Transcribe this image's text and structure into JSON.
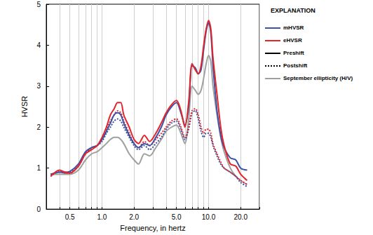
{
  "chart_data": {
    "type": "line",
    "x_label": "Frequency, in hertz",
    "y_label": "HVSR",
    "log": "x",
    "grid": true,
    "legend": "right",
    "legend_title": "EXPLANATION",
    "legend_entries": [
      {
        "name": "mHVSR",
        "color": "#3a53a4",
        "line_style": "solid"
      },
      {
        "name": "eHVSR",
        "color": "#e3242b",
        "line_style": "solid"
      },
      {
        "name": "Preshift",
        "color": "#000000",
        "line_style": "solid"
      },
      {
        "name": "Postshift",
        "color": "#000000",
        "line_style": "dotted"
      },
      {
        "name": "September ellipticity (H/V)",
        "color": "#a0a0a0",
        "line_style": "solid"
      }
    ],
    "xlim": [
      0.3,
      30
    ],
    "xticks": [
      0.5,
      {
        "value": 1,
        "label": "1.0"
      },
      {
        "value": 2,
        "label": "2.0"
      },
      {
        "value": 5,
        "label": "5.0"
      },
      {
        "value": 10,
        "label": "10.0"
      },
      {
        "value": 20,
        "label": "20.0"
      }
    ],
    "ylim": [
      0,
      5
    ],
    "yticks": [
      0,
      1,
      2,
      3,
      4,
      5
    ],
    "x": [
      0.33,
      0.4,
      0.45,
      0.5,
      0.6,
      0.7,
      0.8,
      0.9,
      1.0,
      1.1,
      1.2,
      1.3,
      1.4,
      1.5,
      1.6,
      1.8,
      2.0,
      2.2,
      2.5,
      2.8,
      3.2,
      3.6,
      4.0,
      4.5,
      5.0,
      5.5,
      6.0,
      6.5,
      7.0,
      7.5,
      8.0,
      8.5,
      9.0,
      9.5,
      10.0,
      10.5,
      11,
      12,
      13,
      14,
      16,
      18,
      20,
      23
    ],
    "series": [
      {
        "name": "September ellipticity (H/V)",
        "color": "#a0a0a0",
        "line_style": "solid",
        "values": [
          0.85,
          0.85,
          0.85,
          0.85,
          0.95,
          1.2,
          1.35,
          1.4,
          1.5,
          1.6,
          1.7,
          1.75,
          1.75,
          1.7,
          1.6,
          1.35,
          1.2,
          1.1,
          1.35,
          1.3,
          1.5,
          1.7,
          1.9,
          2.0,
          2.05,
          1.85,
          1.6,
          2.2,
          3.0,
          2.9,
          2.8,
          2.9,
          3.2,
          3.55,
          3.75,
          3.6,
          3.0,
          2.3,
          1.75,
          1.4,
          1.0,
          0.8,
          0.7,
          0.6
        ]
      },
      {
        "name": "mHVSR",
        "color": "#3a53a4",
        "line_style": "dotted",
        "values": [
          0.85,
          0.9,
          0.88,
          0.9,
          1.05,
          1.35,
          1.5,
          1.55,
          1.65,
          1.85,
          2.0,
          2.15,
          2.2,
          2.15,
          2.0,
          1.75,
          1.55,
          1.45,
          1.55,
          1.45,
          1.6,
          1.75,
          1.95,
          2.1,
          2.15,
          1.95,
          1.7,
          1.95,
          2.35,
          2.4,
          2.2,
          1.9,
          1.75,
          1.85,
          1.85,
          1.75,
          1.55,
          1.3,
          1.1,
          1.0,
          0.9,
          0.8,
          0.65,
          0.55
        ]
      },
      {
        "name": "eHVSR",
        "color": "#e3242b",
        "line_style": "dotted",
        "values": [
          0.8,
          0.92,
          0.88,
          0.88,
          1.05,
          1.35,
          1.5,
          1.55,
          1.7,
          1.95,
          2.15,
          2.3,
          2.4,
          2.35,
          2.15,
          1.85,
          1.6,
          1.5,
          1.65,
          1.55,
          1.7,
          1.85,
          2.0,
          2.15,
          2.2,
          2.0,
          1.75,
          2.0,
          2.4,
          2.45,
          2.3,
          2.0,
          1.85,
          1.95,
          1.95,
          1.85,
          1.6,
          1.35,
          1.15,
          1.0,
          0.9,
          0.8,
          0.7,
          0.6
        ]
      },
      {
        "name": "mHVSR",
        "color": "#3a53a4",
        "line_style": "solid",
        "values": [
          0.85,
          0.9,
          0.9,
          0.92,
          1.1,
          1.4,
          1.5,
          1.55,
          1.7,
          1.9,
          2.1,
          2.3,
          2.35,
          2.3,
          2.1,
          1.8,
          1.6,
          1.5,
          1.6,
          1.55,
          1.75,
          2.0,
          2.3,
          2.5,
          2.6,
          2.35,
          2.05,
          2.5,
          3.5,
          3.45,
          3.3,
          3.4,
          3.9,
          4.35,
          4.55,
          4.3,
          3.5,
          2.4,
          1.8,
          1.5,
          1.25,
          1.2,
          1.0,
          0.95
        ]
      },
      {
        "name": "eHVSR",
        "color": "#e3242b",
        "line_style": "solid",
        "values": [
          0.8,
          0.95,
          0.9,
          0.88,
          1.05,
          1.35,
          1.45,
          1.55,
          1.75,
          2.0,
          2.3,
          2.45,
          2.6,
          2.6,
          2.3,
          2.0,
          1.7,
          1.6,
          1.8,
          1.65,
          1.85,
          2.1,
          2.35,
          2.55,
          2.65,
          2.4,
          2.0,
          2.6,
          3.55,
          3.4,
          3.3,
          3.5,
          4.0,
          4.4,
          4.6,
          4.4,
          3.7,
          2.8,
          2.0,
          1.55,
          1.1,
          1.05,
          0.85,
          0.7
        ]
      }
    ]
  }
}
